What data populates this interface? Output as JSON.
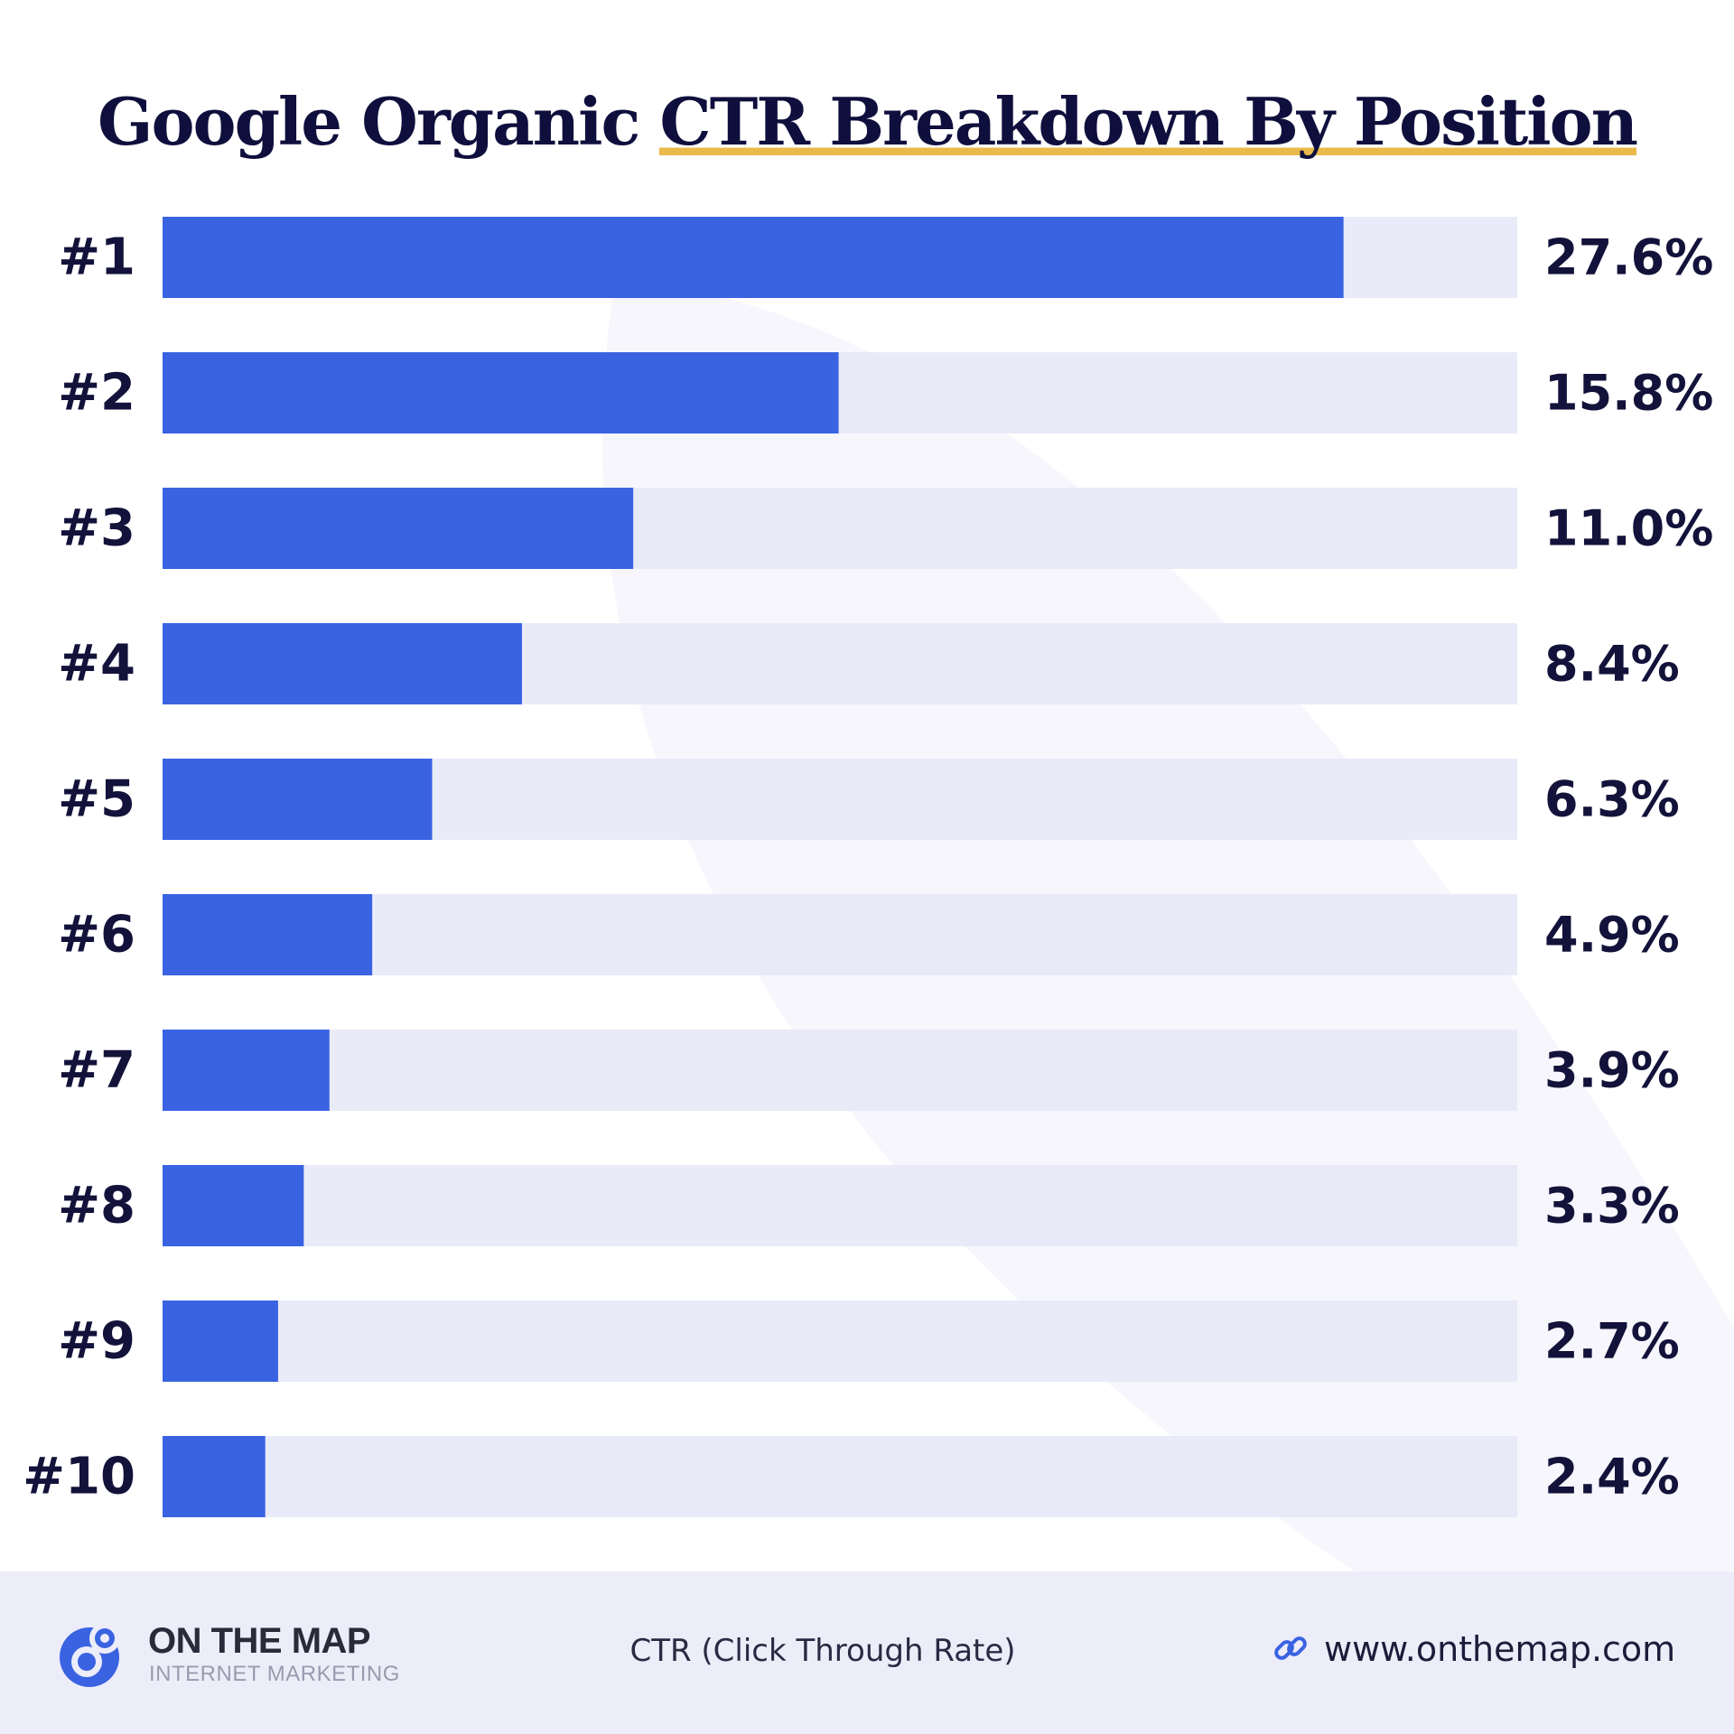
{
  "title": {
    "prefix": "Google Organic ",
    "highlight": "CTR Breakdown By Position"
  },
  "chart_data": {
    "type": "bar",
    "orientation": "horizontal",
    "categories": [
      "#1",
      "#2",
      "#3",
      "#4",
      "#5",
      "#6",
      "#7",
      "#8",
      "#9",
      "#10"
    ],
    "values": [
      27.6,
      15.8,
      11.0,
      8.4,
      6.3,
      4.9,
      3.9,
      3.3,
      2.7,
      2.4
    ],
    "value_labels": [
      "27.6%",
      "15.8%",
      "11.0%",
      "8.4%",
      "6.3%",
      "4.9%",
      "3.9%",
      "3.3%",
      "2.7%",
      "2.4%"
    ],
    "xlim": [
      0,
      31.66
    ],
    "xlabel": "CTR (Click Through Rate)",
    "ylabel": "",
    "grid": false,
    "colors": {
      "bar": "#3a63e2",
      "track": "#e5e8f7",
      "text": "#12123a"
    }
  },
  "footer": {
    "brand_name": "ON THE MAP",
    "brand_subtitle": "INTERNET MARKETING",
    "axis_caption": "CTR (Click Through Rate)",
    "website": "www.onthemap.com",
    "link_icon": "link-icon"
  }
}
